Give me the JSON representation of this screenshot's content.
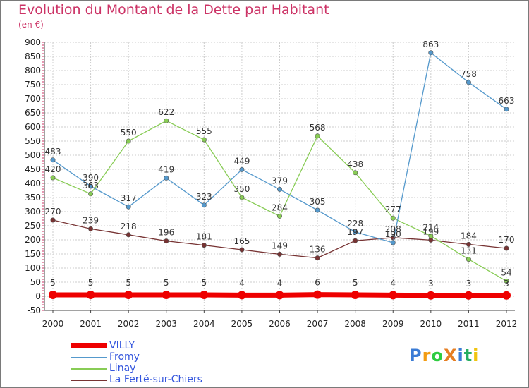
{
  "title": "Evolution du Montant de la Dette par Habitant",
  "subtitle": "(en €)",
  "logo": {
    "text": "ProXiti",
    "letters": [
      {
        "ch": "P",
        "color": "#3a7bd5"
      },
      {
        "ch": "r",
        "color": "#f39c12"
      },
      {
        "ch": "o",
        "color": "#2ecc40"
      },
      {
        "ch": "X",
        "color": "#e67e22"
      },
      {
        "ch": "i",
        "color": "#3a7bd5"
      },
      {
        "ch": "t",
        "color": "#27ae60"
      },
      {
        "ch": "i",
        "color": "#f1c40f"
      }
    ]
  },
  "chart_data": {
    "type": "line",
    "x": [
      "2000",
      "2001",
      "2002",
      "2003",
      "2004",
      "2005",
      "2006",
      "2007",
      "2008",
      "2009",
      "2010",
      "2011",
      "2012"
    ],
    "ylim": [
      -50,
      900
    ],
    "yticks": [
      "-50",
      "0",
      "50",
      "100",
      "150",
      "200",
      "250",
      "300",
      "350",
      "400",
      "450",
      "500",
      "550",
      "600",
      "650",
      "700",
      "750",
      "800",
      "850",
      "900"
    ],
    "grid": true,
    "legend_position": "bottom-left",
    "series": [
      {
        "name": "VILLY",
        "color": "#ee0000",
        "values": [
          5,
          5,
          5,
          5,
          5,
          4,
          4,
          6,
          5,
          4,
          3,
          3,
          3
        ]
      },
      {
        "name": "Fromy",
        "color": "#5599cc",
        "values": [
          483,
          390,
          317,
          419,
          323,
          449,
          379,
          305,
          228,
          190,
          863,
          758,
          663
        ]
      },
      {
        "name": "Linay",
        "color": "#88cc55",
        "values": [
          420,
          363,
          550,
          622,
          555,
          350,
          284,
          568,
          438,
          277,
          214,
          131,
          54
        ]
      },
      {
        "name": "La Ferté-sur-Chiers",
        "color": "#773333",
        "values": [
          270,
          239,
          218,
          196,
          181,
          165,
          149,
          136,
          197,
          208,
          199,
          184,
          170
        ]
      }
    ]
  }
}
